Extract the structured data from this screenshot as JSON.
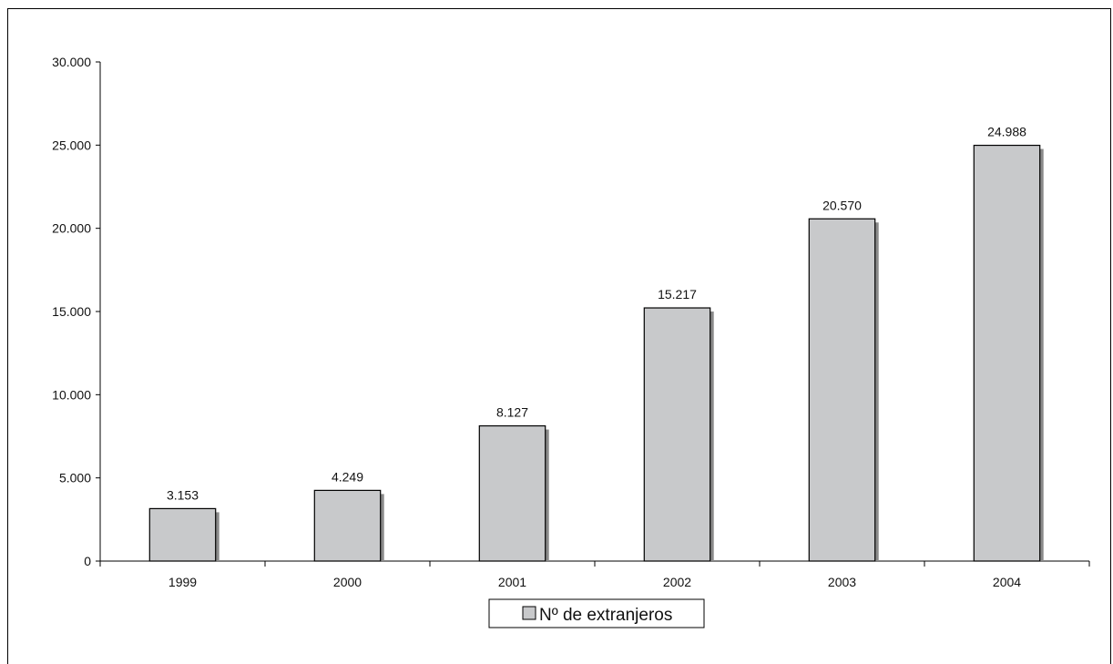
{
  "chart_data": {
    "type": "bar",
    "categories": [
      "1999",
      "2000",
      "2001",
      "2002",
      "2003",
      "2004"
    ],
    "series": [
      {
        "name": "Nº de extranjeros",
        "values": [
          3153,
          4249,
          8127,
          15217,
          20570,
          24988
        ]
      }
    ],
    "data_labels": [
      "3.153",
      "4.249",
      "8.127",
      "15.217",
      "20.570",
      "24.988"
    ],
    "y_ticks": [
      0,
      5000,
      10000,
      15000,
      20000,
      25000,
      30000
    ],
    "y_tick_labels": [
      "0",
      "5.000",
      "10.000",
      "15.000",
      "20.000",
      "25.000",
      "30.000"
    ],
    "ylim": [
      0,
      30000
    ],
    "grid": false,
    "legend": {
      "position": "bottom-center",
      "label": "Nº de extranjeros"
    },
    "colors": {
      "bar_fill": "#c8c9cb",
      "bar_stroke": "#000000",
      "bar_shadow": "#8a8a8a"
    }
  }
}
